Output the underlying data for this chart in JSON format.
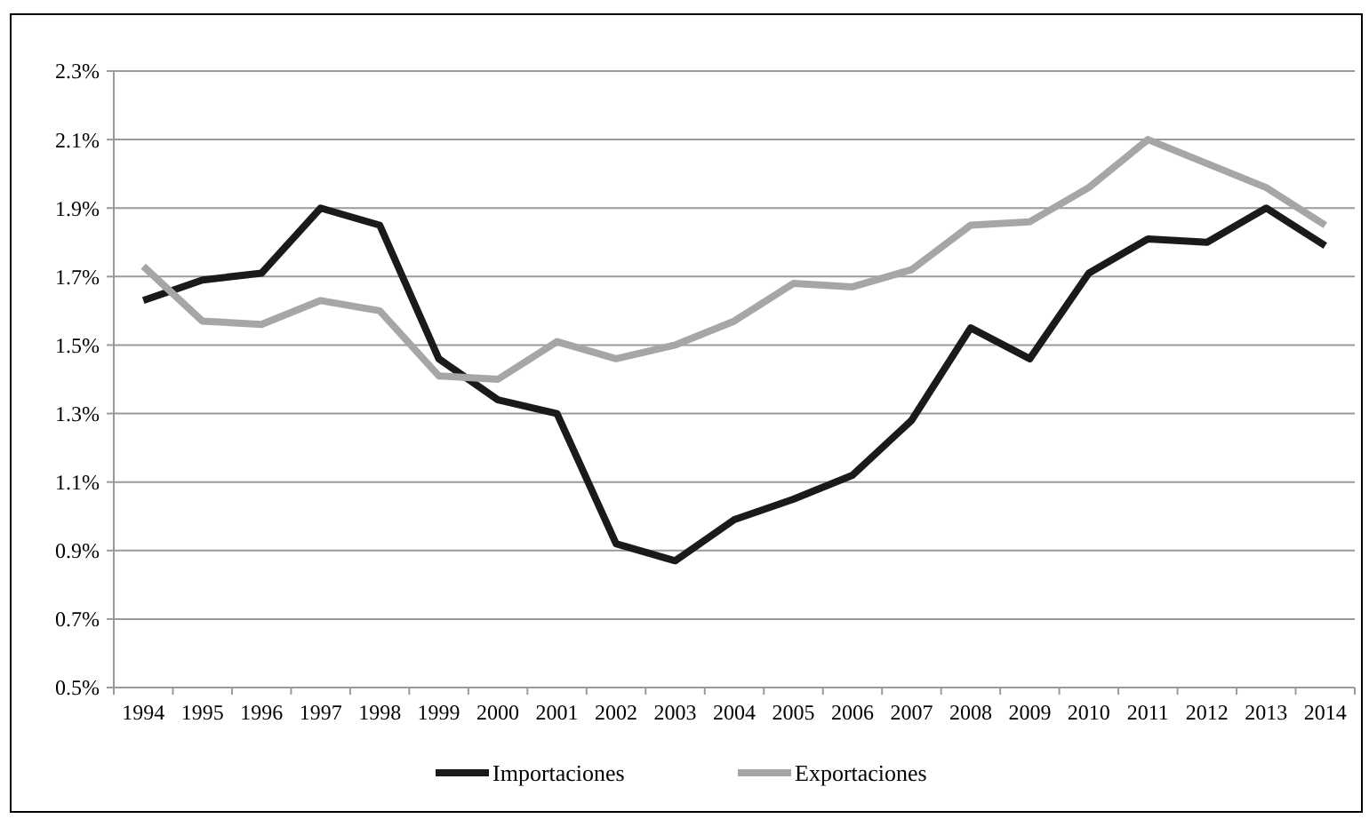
{
  "chart_data": {
    "type": "line",
    "categories": [
      "1994",
      "1995",
      "1996",
      "1997",
      "1998",
      "1999",
      "2000",
      "2001",
      "2002",
      "2003",
      "2004",
      "2005",
      "2006",
      "2007",
      "2008",
      "2009",
      "2010",
      "2011",
      "2012",
      "2013",
      "2014"
    ],
    "series": [
      {
        "name": "Importaciones",
        "color": "#1a1a1a",
        "values": [
          1.63,
          1.69,
          1.71,
          1.9,
          1.85,
          1.46,
          1.34,
          1.3,
          0.92,
          0.87,
          0.99,
          1.05,
          1.12,
          1.28,
          1.55,
          1.46,
          1.71,
          1.81,
          1.8,
          1.9,
          1.79
        ]
      },
      {
        "name": "Exportaciones",
        "color": "#a6a6a6",
        "values": [
          1.73,
          1.57,
          1.56,
          1.63,
          1.6,
          1.41,
          1.4,
          1.51,
          1.46,
          1.5,
          1.57,
          1.68,
          1.67,
          1.72,
          1.85,
          1.86,
          1.96,
          2.1,
          2.03,
          1.96,
          1.85
        ]
      }
    ],
    "ylim": [
      0.5,
      2.3
    ],
    "yticks": [
      {
        "value": 0.5,
        "label": "0.5%"
      },
      {
        "value": 0.7,
        "label": "0.7%"
      },
      {
        "value": 0.9,
        "label": "0.9%"
      },
      {
        "value": 1.1,
        "label": "1.1%"
      },
      {
        "value": 1.3,
        "label": "1.3%"
      },
      {
        "value": 1.5,
        "label": "1.5%"
      },
      {
        "value": 1.7,
        "label": "1.7%"
      },
      {
        "value": 1.9,
        "label": "1.9%"
      },
      {
        "value": 2.1,
        "label": "2.1%"
      },
      {
        "value": 2.3,
        "label": "2.3%"
      }
    ],
    "grid": "y",
    "legend": "bottom",
    "marker": "none",
    "line_style": "solid"
  }
}
